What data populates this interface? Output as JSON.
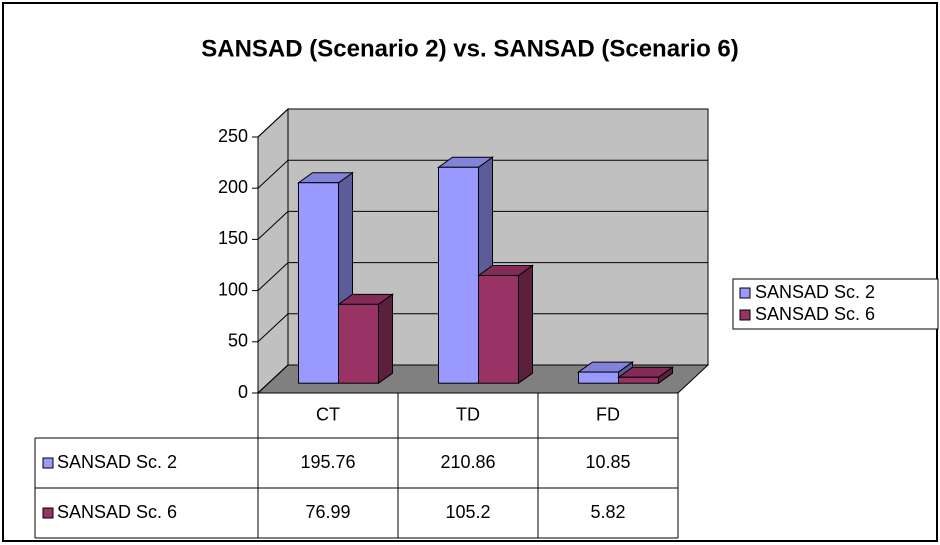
{
  "chart_data": {
    "type": "bar3d",
    "title": "SANSAD (Scenario 2) vs. SANSAD (Scenario 6)",
    "categories": [
      "CT",
      "TD",
      "FD"
    ],
    "series": [
      {
        "name": "SANSAD Sc. 2",
        "color": "#9999ff",
        "values": [
          195.76,
          210.86,
          10.85
        ]
      },
      {
        "name": "SANSAD Sc. 6",
        "color": "#993366",
        "values": [
          76.99,
          105.2,
          5.82
        ]
      }
    ],
    "ylim": [
      0,
      250
    ],
    "yticks": [
      0,
      50,
      100,
      150,
      200,
      250
    ],
    "grid": true,
    "legend": "right",
    "data_table": true
  }
}
